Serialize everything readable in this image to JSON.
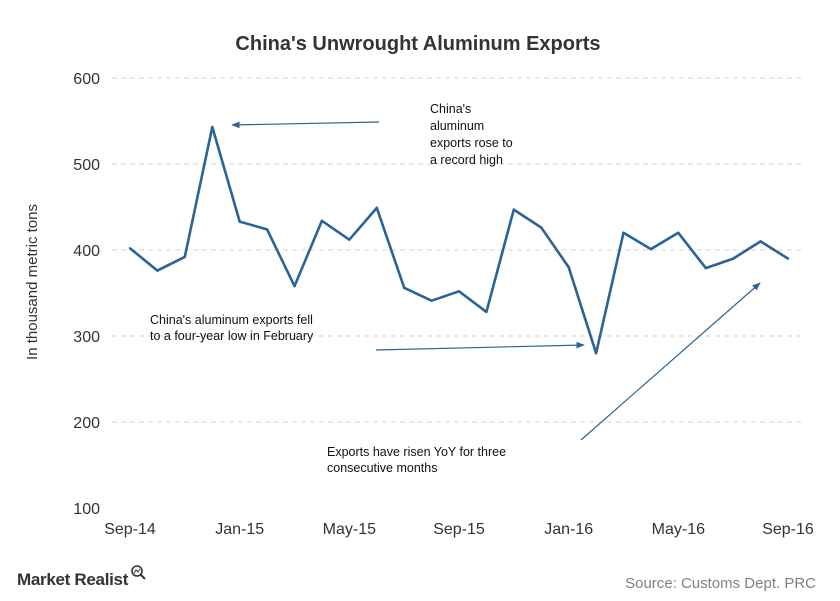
{
  "chart_data": {
    "type": "line",
    "title": "China's  Unwrought  Aluminum  Exports",
    "ylabel": "In thousand metric tons",
    "xlabel": "",
    "ylim": [
      100,
      600
    ],
    "yticks": [
      100,
      200,
      300,
      400,
      500,
      600
    ],
    "grid": true,
    "x": [
      "Sep-14",
      "Oct-14",
      "Nov-14",
      "Dec-14",
      "Jan-15",
      "Feb-15",
      "Mar-15",
      "Apr-15",
      "May-15",
      "Jun-15",
      "Jul-15",
      "Aug-15",
      "Sep-15",
      "Oct-15",
      "Nov-15",
      "Dec-15",
      "Jan-16",
      "Feb-16",
      "Mar-16",
      "Apr-16",
      "May-16",
      "Jun-16",
      "Jul-16",
      "Aug-16",
      "Sep-16"
    ],
    "xtick_labels": [
      "Sep-14",
      "Jan-15",
      "May-15",
      "Sep-15",
      "Jan-16",
      "May-16",
      "Sep-16"
    ],
    "series": [
      {
        "color": "#2a6496",
        "values": [
          402,
          376,
          392,
          543,
          433,
          424,
          358,
          434,
          412,
          449,
          356,
          341,
          352,
          328,
          447,
          426,
          380,
          280,
          420,
          401,
          420,
          379,
          390,
          410,
          390
        ]
      }
    ],
    "annotations": [
      {
        "lines": [
          "China's",
          "aluminum",
          "exports rose to",
          "a record  high"
        ],
        "points_to": "Dec-14"
      },
      {
        "lines": [
          "China's  aluminum exports fell",
          "to a four-year  low in February"
        ],
        "points_to": "Feb-16"
      },
      {
        "lines": [
          "Exports have  risen YoY for three",
          "consecutive months"
        ],
        "points_to": "Sep-16"
      }
    ]
  },
  "branding": {
    "logo_text": "Market Realist",
    "source": "Source:  Customs Dept. PRC"
  },
  "colors": {
    "line": "#2a6496",
    "annotation_arrow": "#2a6496",
    "text": "#333333"
  }
}
